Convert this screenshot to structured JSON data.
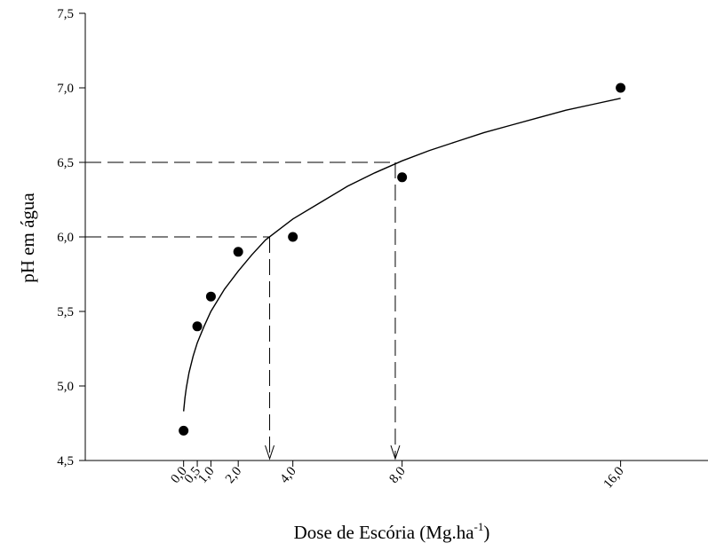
{
  "chart_data": {
    "type": "scatter",
    "xlabel": "Dose de Escória (Mg.ha",
    "xlabel_superscript": "-1",
    "xlabel_close": ")",
    "ylabel": "pH em água",
    "ylim": [
      4.5,
      7.5
    ],
    "xlim": [
      -3.6,
      19.2
    ],
    "x_ticks": [
      0.0,
      0.5,
      1.0,
      2.0,
      4.0,
      8.0,
      16.0
    ],
    "x_tick_labels": [
      "0,0",
      "0,5",
      "1,0",
      "2,0",
      "4,0",
      "8,0",
      "16,0"
    ],
    "y_ticks": [
      4.5,
      5.0,
      5.5,
      6.0,
      6.5,
      7.0,
      7.5
    ],
    "y_tick_labels": [
      "4,5",
      "5,0",
      "5,5",
      "6,0",
      "6,5",
      "7,0",
      "7,5"
    ],
    "series": [
      {
        "x": [
          0.0,
          0.5,
          1.0,
          2.0,
          4.0,
          8.0,
          16.0
        ],
        "y": [
          4.7,
          5.4,
          5.6,
          5.9,
          6.0,
          6.4,
          7.0
        ]
      }
    ],
    "fit_curve": {
      "x": [
        0.0,
        0.05,
        0.1,
        0.2,
        0.35,
        0.5,
        0.75,
        1.0,
        1.5,
        2.0,
        2.5,
        3.0,
        4.0,
        5.0,
        6.0,
        7.0,
        8.0,
        9.0,
        10.0,
        11.0,
        12.0,
        13.0,
        14.0,
        15.0,
        16.0
      ],
      "y": [
        4.83,
        4.92,
        4.99,
        5.09,
        5.2,
        5.29,
        5.4,
        5.5,
        5.65,
        5.77,
        5.88,
        5.98,
        6.12,
        6.23,
        6.34,
        6.43,
        6.51,
        6.58,
        6.64,
        6.7,
        6.75,
        6.8,
        6.85,
        6.89,
        6.93
      ]
    },
    "guides": [
      {
        "y": 6.0,
        "x": 3.15
      },
      {
        "y": 6.5,
        "x": 7.75
      }
    ],
    "grid": false,
    "legend": "none"
  }
}
